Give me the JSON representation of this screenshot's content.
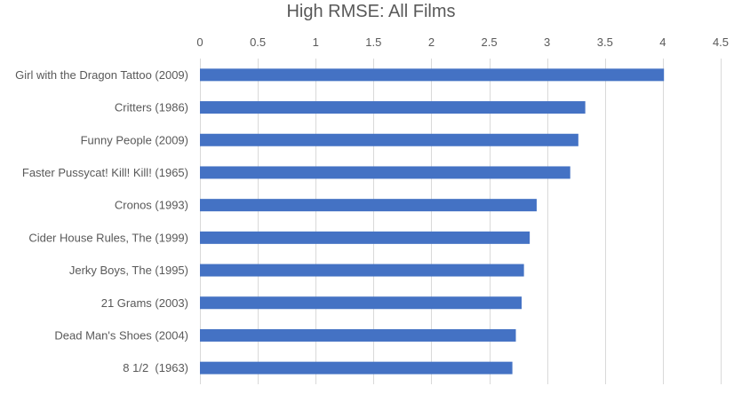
{
  "chart_data": {
    "type": "bar",
    "orientation": "horizontal",
    "title": "High RMSE: All Films",
    "xlabel": "",
    "ylabel": "",
    "x_axis_position": "top",
    "xlim": [
      0,
      4.5
    ],
    "x_ticks": [
      0,
      0.5,
      1,
      1.5,
      2,
      2.5,
      3,
      3.5,
      4,
      4.5
    ],
    "x_tick_labels": [
      "0",
      "0.5",
      "1",
      "1.5",
      "2",
      "2.5",
      "3",
      "3.5",
      "4",
      "4.5"
    ],
    "grid": true,
    "legend": "none",
    "bar_color": "#4472C4",
    "categories": [
      "Girl with the Dragon Tattoo (2009)",
      "Critters (1986)",
      "Funny People (2009)",
      "Faster Pussycat! Kill! Kill! (1965)",
      "Cronos (1993)",
      "Cider House Rules, The (1999)",
      "Jerky Boys, The (1995)",
      "21 Grams (2003)",
      "Dead Man's Shoes (2004)",
      "8 1/2  (1963)"
    ],
    "values": [
      4.01,
      3.33,
      3.27,
      3.2,
      2.91,
      2.85,
      2.8,
      2.78,
      2.73,
      2.7
    ]
  }
}
